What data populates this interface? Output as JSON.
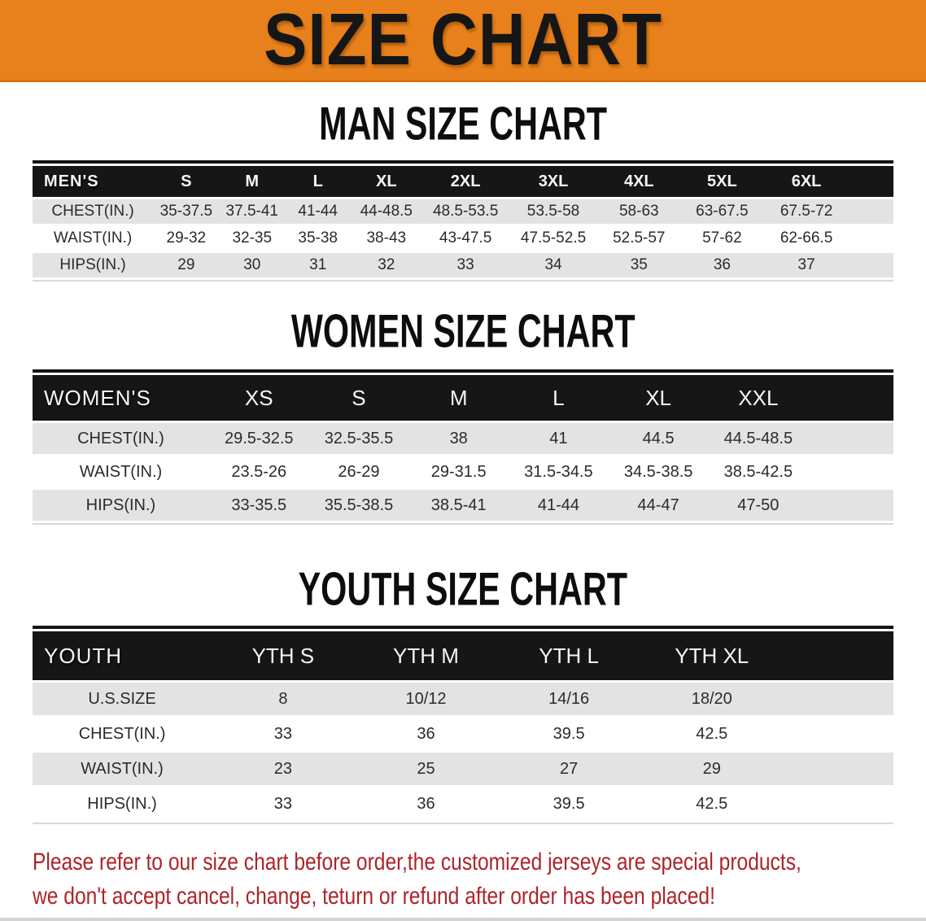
{
  "banner": {
    "title": "SIZE CHART"
  },
  "colors": {
    "banner_bg": "#E8811B",
    "header_bg": "#161616",
    "row_alt": "#E3E3E3",
    "note_red": "#AE2328"
  },
  "sections": [
    {
      "heading": "MAN SIZE CHART",
      "table": {
        "label": "MEN'S",
        "columns": [
          "S",
          "M",
          "L",
          "XL",
          "2XL",
          "3XL",
          "4XL",
          "5XL",
          "6XL"
        ],
        "rows": [
          {
            "label": "CHEST(IN.)",
            "values": [
              "35-37.5",
              "37.5-41",
              "41-44",
              "44-48.5",
              "48.5-53.5",
              "53.5-58",
              "58-63",
              "63-67.5",
              "67.5-72"
            ]
          },
          {
            "label": "WAIST(IN.)",
            "values": [
              "29-32",
              "32-35",
              "35-38",
              "38-43",
              "43-47.5",
              "47.5-52.5",
              "52.5-57",
              "57-62",
              "62-66.5"
            ]
          },
          {
            "label": "HIPS(IN.)",
            "values": [
              "29",
              "30",
              "31",
              "32",
              "33",
              "34",
              "35",
              "36",
              "37"
            ]
          }
        ]
      }
    },
    {
      "heading": "WOMEN SIZE CHART",
      "table": {
        "label": "WOMEN'S",
        "columns": [
          "XS",
          "S",
          "M",
          "L",
          "XL",
          "XXL"
        ],
        "rows": [
          {
            "label": "CHEST(IN.)",
            "values": [
              "29.5-32.5",
              "32.5-35.5",
              "38",
              "41",
              "44.5",
              "44.5-48.5"
            ]
          },
          {
            "label": "WAIST(IN.)",
            "values": [
              "23.5-26",
              "26-29",
              "29-31.5",
              "31.5-34.5",
              "34.5-38.5",
              "38.5-42.5"
            ]
          },
          {
            "label": "HIPS(IN.)",
            "values": [
              "33-35.5",
              "35.5-38.5",
              "38.5-41",
              "41-44",
              "44-47",
              "47-50"
            ]
          }
        ]
      }
    },
    {
      "heading": "YOUTH SIZE CHART",
      "table": {
        "label": "YOUTH",
        "columns": [
          "YTH S",
          "YTH M",
          "YTH L",
          "YTH XL"
        ],
        "rows": [
          {
            "label": "U.S.SIZE",
            "values": [
              "8",
              "10/12",
              "14/16",
              "18/20"
            ]
          },
          {
            "label": "CHEST(IN.)",
            "values": [
              "33",
              "36",
              "39.5",
              "42.5"
            ]
          },
          {
            "label": "WAIST(IN.)",
            "values": [
              "23",
              "25",
              "27",
              "29"
            ]
          },
          {
            "label": "HIPS(IN.)",
            "values": [
              "33",
              "36",
              "39.5",
              "42.5"
            ]
          }
        ]
      }
    }
  ],
  "footnote": {
    "lines": [
      "Please refer to our size chart before order,the customized jerseys are special products,",
      "we don't accept cancel, change, teturn or refund after order has been placed!"
    ]
  }
}
